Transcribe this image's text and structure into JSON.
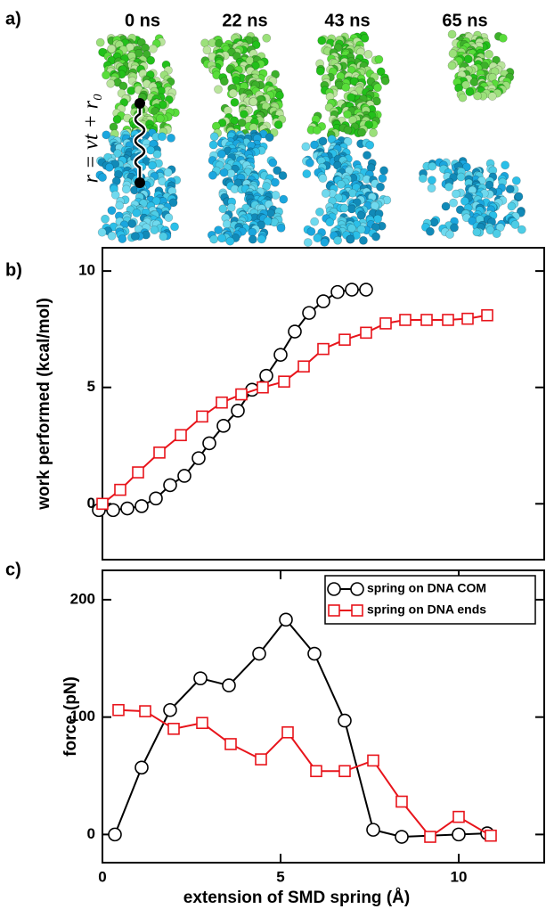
{
  "panel_a": {
    "label": "a)",
    "times": [
      "0 ns",
      "22 ns",
      "43 ns",
      "65 ns"
    ],
    "formula": "r = vt + r₀"
  },
  "chart_data": [
    {
      "type": "line",
      "label": "b)",
      "ylabel": "work performed (kcal/mol)",
      "xlim": [
        0,
        12.4
      ],
      "ylim": [
        -2.4,
        11
      ],
      "yticks": [
        0,
        5,
        10
      ],
      "series": [
        {
          "color": "#000000",
          "marker": "circle",
          "x": [
            -0.1,
            0.3,
            0.7,
            1.1,
            1.5,
            1.9,
            2.3,
            2.7,
            3.0,
            3.4,
            3.8,
            4.2,
            4.6,
            5.0,
            5.4,
            5.8,
            6.2,
            6.6,
            7.0,
            7.4
          ],
          "values": [
            -0.27,
            -0.27,
            -0.2,
            -0.1,
            0.23,
            0.8,
            1.2,
            1.96,
            2.6,
            3.35,
            4.0,
            4.9,
            5.5,
            6.4,
            7.4,
            8.2,
            8.7,
            9.1,
            9.2,
            9.2
          ]
        },
        {
          "color": "#e8141b",
          "marker": "square",
          "x": [
            0,
            0.5,
            1.0,
            1.6,
            2.2,
            2.8,
            3.35,
            3.9,
            4.5,
            5.1,
            5.65,
            6.2,
            6.8,
            7.4,
            7.95,
            8.5,
            9.1,
            9.7,
            10.25,
            10.8
          ],
          "values": [
            0,
            0.6,
            1.35,
            2.2,
            2.95,
            3.75,
            4.35,
            4.7,
            5.0,
            5.25,
            5.9,
            6.65,
            7.05,
            7.35,
            7.75,
            7.9,
            7.9,
            7.9,
            7.95,
            8.1
          ]
        }
      ]
    },
    {
      "type": "line",
      "label": "c)",
      "ylabel": "force (pN)",
      "xlabel": "extension of SMD spring (Å)",
      "xlim": [
        0,
        12.4
      ],
      "ylim": [
        -24,
        225
      ],
      "xticks": [
        0,
        5,
        10
      ],
      "yticks": [
        0,
        100,
        200
      ],
      "legend": "upper right",
      "series": [
        {
          "name": "spring on DNA COM",
          "color": "#000000",
          "marker": "circle",
          "x": [
            0.35,
            1.1,
            1.9,
            2.75,
            3.55,
            4.4,
            5.15,
            5.95,
            6.8,
            7.6,
            8.4,
            10.0,
            10.8
          ],
          "values": [
            0,
            57,
            106,
            133,
            127,
            154,
            183,
            154,
            97,
            4,
            -2,
            0,
            1
          ]
        },
        {
          "name": "spring on DNA ends",
          "color": "#e8141b",
          "marker": "square",
          "x": [
            0.45,
            1.2,
            2.0,
            2.8,
            3.6,
            4.45,
            5.2,
            6.0,
            6.8,
            7.6,
            8.4,
            9.2,
            10.0,
            10.9
          ],
          "values": [
            106,
            105,
            90,
            95,
            77,
            64,
            87,
            54,
            54,
            63,
            28,
            -2,
            15,
            -1
          ]
        }
      ]
    }
  ]
}
